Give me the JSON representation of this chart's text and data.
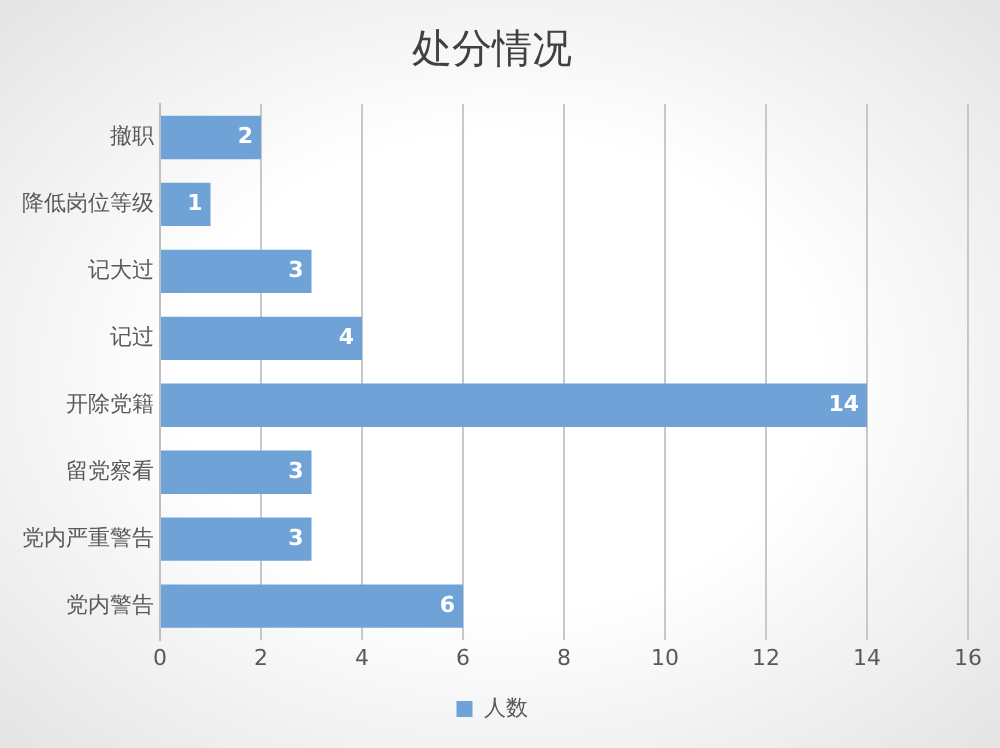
{
  "chart_data": {
    "type": "bar",
    "orientation": "horizontal",
    "title": "处分情况",
    "categories": [
      "撤职",
      "降低岗位等级",
      "记大过",
      "记过",
      "开除党籍",
      "留党察看",
      "党内严重警告",
      "党内警告"
    ],
    "series": [
      {
        "name": "人数",
        "color": "#6fa3d8",
        "values": [
          2,
          1,
          3,
          4,
          14,
          3,
          3,
          6
        ]
      }
    ],
    "xlim": [
      0,
      16
    ],
    "xticks": [
      0,
      2,
      4,
      6,
      8,
      10,
      12,
      14,
      16
    ],
    "grid": "x",
    "legend": "bottom",
    "data_labels": true
  }
}
